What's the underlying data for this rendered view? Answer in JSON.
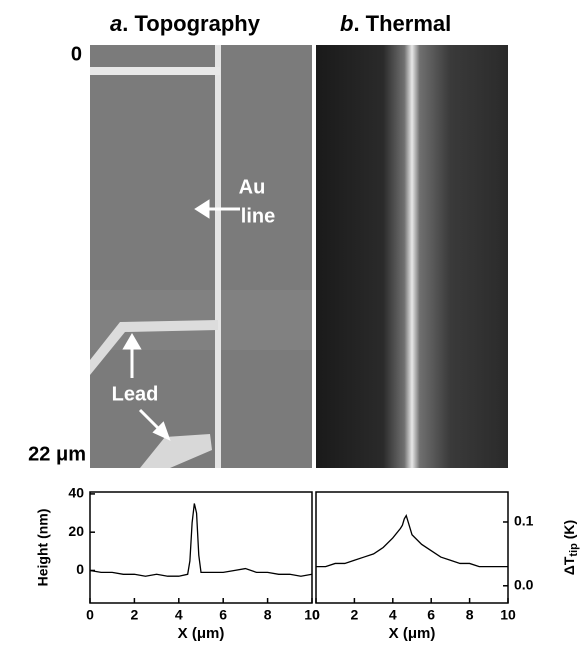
{
  "panels": [
    {
      "letter": "a",
      "title": ". Topography"
    },
    {
      "letter": "b",
      "title": ". Thermal"
    }
  ],
  "scale": {
    "top": "0",
    "bottom": "22 μm"
  },
  "annotations": {
    "au_1": "Au",
    "au_2": "line",
    "lead": "Lead"
  },
  "chart_data": [
    {
      "type": "line",
      "xlabel": "X (μm)",
      "ylabel": "Height (nm)",
      "x": [
        0,
        0.5,
        1,
        1.5,
        2,
        2.5,
        3,
        3.5,
        4,
        4.4,
        4.5,
        4.6,
        4.7,
        4.8,
        4.9,
        5,
        5.5,
        6,
        6.5,
        7,
        7.5,
        8,
        8.5,
        9,
        9.5,
        10
      ],
      "values": [
        0,
        -1,
        -1,
        -2,
        -2,
        -3,
        -2,
        -3,
        -3,
        -2,
        5,
        25,
        35,
        30,
        8,
        -1,
        -1,
        -1,
        0,
        1,
        -1,
        -1,
        -2,
        -2,
        -3,
        -2
      ],
      "color": "#000000",
      "xlim": [
        0,
        10
      ],
      "xticks": [
        0,
        2,
        4,
        6,
        8,
        10
      ],
      "ylim": [
        -17,
        41
      ],
      "yticks": [
        0,
        20,
        40
      ]
    },
    {
      "type": "line",
      "xlabel": "X (μm)",
      "y2label": {
        "main": "ΔT",
        "sub": "tip",
        "unit": " (K)"
      },
      "x": [
        0,
        0.5,
        1,
        1.5,
        2,
        2.5,
        3,
        3.5,
        4,
        4.4,
        4.5,
        4.6,
        4.7,
        4.8,
        4.9,
        5,
        5.5,
        6,
        6.5,
        7,
        7.5,
        8,
        8.5,
        9,
        9.5,
        10
      ],
      "series": [
        {
          "axis": "y2",
          "color": "#000000",
          "values": [
            0.03,
            0.03,
            0.035,
            0.035,
            0.04,
            0.045,
            0.05,
            0.06,
            0.075,
            0.09,
            0.095,
            0.105,
            0.11,
            0.1,
            0.09,
            0.08,
            0.065,
            0.055,
            0.045,
            0.04,
            0.035,
            0.035,
            0.03,
            0.03,
            0.03,
            0.03
          ]
        }
      ],
      "xlim": [
        0,
        10
      ],
      "xticks": [
        0,
        2,
        4,
        6,
        8,
        10
      ],
      "y2lim": [
        -0.027,
        0.147
      ],
      "y2ticks": [
        {
          "value": 0,
          "label": "0.0"
        },
        0.1
      ]
    }
  ]
}
